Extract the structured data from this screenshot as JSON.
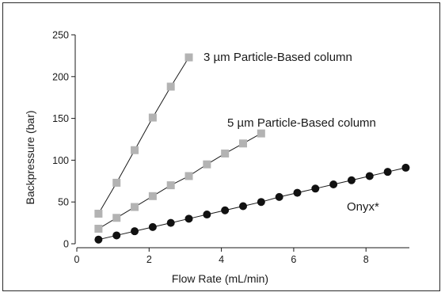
{
  "chart_data": {
    "type": "scatter",
    "xlabel": "Flow Rate (mL/min)",
    "ylabel": "Backpressure (bar)",
    "xlim": [
      0,
      9.2
    ],
    "ylim": [
      0,
      250
    ],
    "xticks": [
      0,
      2,
      4,
      6,
      8
    ],
    "yticks": [
      0,
      50,
      100,
      150,
      200,
      250
    ],
    "grid": false,
    "series": [
      {
        "name": "3 µm Particle-Based column",
        "marker": "square",
        "color": "#b3b3b3",
        "x": [
          0.6,
          1.1,
          1.6,
          2.1,
          2.6,
          3.1
        ],
        "y": [
          36,
          73,
          112,
          151,
          188,
          223
        ]
      },
      {
        "name": "5 µm Particle-Based column",
        "marker": "square",
        "color": "#b3b3b3",
        "x": [
          0.6,
          1.1,
          1.6,
          2.1,
          2.6,
          3.1,
          3.6,
          4.1,
          4.6,
          5.1
        ],
        "y": [
          18,
          31,
          44,
          57,
          70,
          81,
          95,
          108,
          120,
          132
        ]
      },
      {
        "name": "Onyx*",
        "marker": "circle",
        "color": "#111111",
        "x": [
          0.6,
          1.1,
          1.6,
          2.1,
          2.6,
          3.1,
          3.6,
          4.1,
          4.6,
          5.1,
          5.6,
          6.1,
          6.6,
          7.1,
          7.6,
          8.1,
          8.6,
          9.1
        ],
        "y": [
          5,
          10,
          15,
          20,
          25,
          30,
          35,
          40,
          45,
          50,
          56,
          61,
          66,
          71,
          76,
          81,
          86,
          91
        ]
      }
    ]
  }
}
